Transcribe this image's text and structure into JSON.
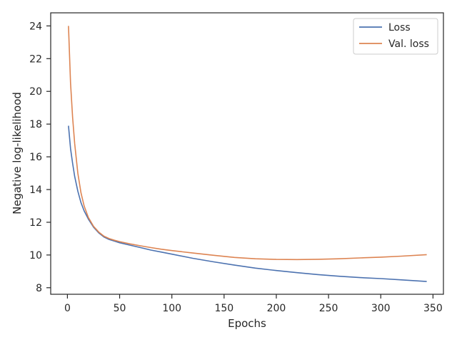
{
  "chart_data": {
    "type": "line",
    "title": "",
    "xlabel": "Epochs",
    "ylabel": "Negative log-likelihood",
    "xlim": [
      -16,
      360
    ],
    "ylim": [
      7.6,
      24.8
    ],
    "x_ticks": [
      0,
      50,
      100,
      150,
      200,
      250,
      300,
      350
    ],
    "y_ticks": [
      8,
      10,
      12,
      14,
      16,
      18,
      20,
      22,
      24
    ],
    "grid": false,
    "legend_position": "top-right",
    "series": [
      {
        "name": "Loss",
        "color": "#4c72b0",
        "x": [
          1,
          3,
          5,
          7,
          10,
          13,
          16,
          20,
          25,
          30,
          35,
          40,
          45,
          50,
          60,
          70,
          80,
          90,
          100,
          120,
          140,
          160,
          180,
          200,
          220,
          240,
          260,
          280,
          300,
          320,
          344
        ],
        "y": [
          17.9,
          16.5,
          15.6,
          14.8,
          13.9,
          13.2,
          12.7,
          12.2,
          11.7,
          11.35,
          11.1,
          10.95,
          10.85,
          10.75,
          10.6,
          10.45,
          10.3,
          10.18,
          10.05,
          9.8,
          9.58,
          9.38,
          9.2,
          9.05,
          8.92,
          8.8,
          8.7,
          8.62,
          8.56,
          8.48,
          8.38
        ]
      },
      {
        "name": "Val. loss",
        "color": "#dd8452",
        "x": [
          1,
          3,
          5,
          7,
          10,
          13,
          16,
          20,
          25,
          30,
          35,
          40,
          45,
          50,
          60,
          70,
          80,
          90,
          100,
          120,
          140,
          160,
          180,
          200,
          220,
          240,
          260,
          280,
          300,
          320,
          344
        ],
        "y": [
          24.0,
          20.5,
          18.4,
          16.8,
          15.0,
          13.8,
          13.0,
          12.3,
          11.75,
          11.4,
          11.15,
          11.0,
          10.9,
          10.82,
          10.68,
          10.56,
          10.45,
          10.35,
          10.27,
          10.12,
          9.98,
          9.85,
          9.77,
          9.73,
          9.72,
          9.74,
          9.77,
          9.82,
          9.87,
          9.93,
          10.02
        ]
      }
    ]
  }
}
